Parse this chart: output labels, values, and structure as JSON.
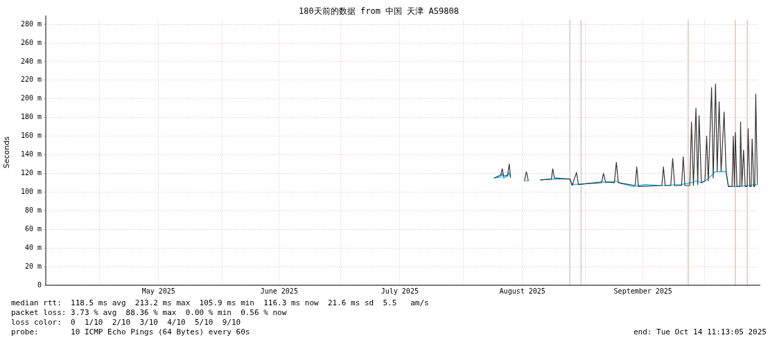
{
  "chart_data": {
    "type": "line",
    "title": "180天前的数据 from 中国 天津 AS9808",
    "ylabel": "Seconds",
    "xlim": [
      "2025-04-17T11:13",
      "2025-10-14T11:13"
    ],
    "xticks": [
      {
        "value": "2025-05-01",
        "label": null
      },
      {
        "value": "2025-05-16",
        "label": "May 2025"
      },
      {
        "value": "2025-06-01",
        "label": null
      },
      {
        "value": "2025-06-15T12:00",
        "label": "June 2025"
      },
      {
        "value": "2025-07-01",
        "label": null
      },
      {
        "value": "2025-07-16",
        "label": "July 2025"
      },
      {
        "value": "2025-08-01",
        "label": null
      },
      {
        "value": "2025-08-16",
        "label": "August 2025"
      },
      {
        "value": "2025-09-01",
        "label": null
      },
      {
        "value": "2025-09-15T12:00",
        "label": "September 2025"
      },
      {
        "value": "2025-10-01",
        "label": null
      }
    ],
    "ylim": [
      0,
      285
    ],
    "yticks": [
      {
        "value": 0,
        "label": "0"
      },
      {
        "value": 20,
        "label": "20 m"
      },
      {
        "value": 40,
        "label": "40 m"
      },
      {
        "value": 60,
        "label": "60 m"
      },
      {
        "value": 80,
        "label": "80 m"
      },
      {
        "value": 100,
        "label": "100 m"
      },
      {
        "value": 120,
        "label": "120 m"
      },
      {
        "value": 140,
        "label": "140 m"
      },
      {
        "value": 160,
        "label": "160 m"
      },
      {
        "value": 180,
        "label": "180 m"
      },
      {
        "value": 200,
        "label": "200 m"
      },
      {
        "value": 220,
        "label": "220 m"
      },
      {
        "value": 240,
        "label": "240 m"
      },
      {
        "value": 260,
        "label": "260 m"
      },
      {
        "value": 280,
        "label": "280 m"
      }
    ],
    "grid": true,
    "legend": false,
    "marker": "none",
    "line_style": "solid",
    "series": [
      {
        "color": "#333333",
        "x": [
          "2025-08-08T19:00",
          "2025-08-10T12:00",
          "2025-08-10T22:00",
          "2025-08-11T06:00",
          "2025-08-12T06:00",
          "2025-08-12T16:00",
          "2025-08-13T00:00",
          "2025-08-14T12:00",
          "2025-08-16T12:00",
          "2025-08-17T00:00",
          "2025-08-17T12:00",
          "2025-08-19T00:00",
          "2025-08-20T12:00",
          "2025-08-23T08:00",
          "2025-08-23T16:00",
          "2025-08-24T02:00",
          "2025-08-28T00:00",
          "2025-08-28T14:00",
          "2025-08-29T16:00",
          "2025-08-30T04:00",
          "2025-09-01T00:00",
          "2025-09-05T00:00",
          "2025-09-05T12:00",
          "2025-09-06T00:00",
          "2025-09-08T06:00",
          "2025-09-08T18:00",
          "2025-09-09T06:00",
          "2025-09-13T12:00",
          "2025-09-13T22:00",
          "2025-09-14T08:00",
          "2025-09-20T06:00",
          "2025-09-20T16:00",
          "2025-09-21T02:00",
          "2025-09-22T12:00",
          "2025-09-23T00:00",
          "2025-09-23T12:00",
          "2025-09-25T06:00",
          "2025-09-25T16:00",
          "2025-09-26T02:00",
          "2025-09-27T08:00",
          "2025-09-27T18:00",
          "2025-09-28T06:00",
          "2025-09-28T21:00",
          "2025-09-29T08:00",
          "2025-09-29T16:00",
          "2025-09-30T06:00",
          "2025-10-01T04:00",
          "2025-10-01T14:00",
          "2025-10-02T00:00",
          "2025-10-02T20:00",
          "2025-10-03T06:00",
          "2025-10-03T20:00",
          "2025-10-04T06:00",
          "2025-10-04T18:00",
          "2025-10-05T06:00",
          "2025-10-06T00:00",
          "2025-10-06T12:00",
          "2025-10-07T02:00",
          "2025-10-08T00:00",
          "2025-10-08T08:00",
          "2025-10-08T14:00",
          "2025-10-08T20:00",
          "2025-10-09T06:00",
          "2025-10-10T00:00",
          "2025-10-10T04:00",
          "2025-10-10T12:00",
          "2025-10-10T22:00",
          "2025-10-11T08:00",
          "2025-10-11T20:00",
          "2025-10-12T02:00",
          "2025-10-12T12:00",
          "2025-10-12T20:00",
          "2025-10-13T02:00",
          "2025-10-13T12:00",
          "2025-10-13T18:00",
          "2025-10-14T00:00",
          "2025-10-14T10:00"
        ],
        "values": [
          115,
          118,
          125,
          117,
          118,
          130,
          116,
          null,
          112,
          122,
          112,
          null,
          113,
          114,
          125,
          115,
          114,
          107,
          121,
          108,
          109,
          110,
          120,
          111,
          110,
          132,
          110,
          107,
          127,
          106,
          107,
          127,
          107,
          107,
          136,
          107,
          107,
          138,
          107,
          107,
          175,
          107,
          190,
          108,
          182,
          110,
          112,
          160,
          112,
          212,
          115,
          216,
          122,
          197,
          122,
          186,
          122,
          106,
          106,
          160,
          106,
          164,
          106,
          106,
          175,
          106,
          145,
          106,
          106,
          168,
          106,
          106,
          157,
          106,
          106,
          205,
          108
        ]
      },
      {
        "color": "#00b4ff",
        "x": [
          "2025-08-08T19:00",
          "2025-08-10T12:00",
          "2025-08-10T22:00",
          "2025-08-11T06:00",
          "2025-08-12T06:00",
          "2025-08-12T16:00",
          "2025-08-13T00:00",
          "2025-08-14T12:00",
          "2025-08-16T12:00",
          "2025-08-17T12:00",
          "2025-08-19T00:00",
          "2025-08-20T12:00",
          "2025-08-24T02:00",
          "2025-08-28T00:00",
          "2025-08-28T14:00",
          "2025-09-01T00:00",
          "2025-09-05T00:00",
          "2025-09-06T00:00",
          "2025-09-08T18:00",
          "2025-09-10T00:00",
          "2025-09-13T00:00",
          "2025-09-16T00:00",
          "2025-09-20T12:00",
          "2025-09-25T00:00",
          "2025-09-27T18:00",
          "2025-09-28T21:00",
          "2025-09-30T06:00",
          "2025-10-01T14:00",
          "2025-10-02T20:00",
          "2025-10-03T20:00",
          "2025-10-06T12:00",
          "2025-10-07T02:00",
          "2025-10-09T06:00",
          "2025-10-12T00:00",
          "2025-10-14T10:00"
        ],
        "values": [
          115,
          116,
          120,
          115,
          117,
          121,
          115,
          null,
          112,
          112,
          null,
          113,
          114,
          114,
          108,
          109,
          111,
          110,
          112,
          109,
          106,
          108,
          107,
          108,
          110,
          112,
          110,
          113,
          118,
          122,
          122,
          106,
          106,
          107,
          108
        ]
      }
    ],
    "ref_lines": [
      {
        "axis": "x",
        "value": "2025-08-28T00:00",
        "color": "#cccccc"
      },
      {
        "axis": "x",
        "value": "2025-08-30T20:00",
        "color": "#cccccc"
      },
      {
        "axis": "x",
        "value": "2025-09-26T22:00",
        "color": "#e8c0c0"
      },
      {
        "axis": "x",
        "value": "2025-10-08T20:00",
        "color": "#e8c0c0"
      },
      {
        "axis": "x",
        "value": "2025-10-11T20:00",
        "color": "#e8c0c0"
      }
    ],
    "annotations": [
      "median rtt:  118.5 ms avg  213.2 ms max  105.9 ms min  116.3 ms now  21.6 ms sd  5.5   am/s",
      "packet loss: 3.73 % avg  88.36 % max  0.00 % min  0.56 % now",
      "loss color:  0  1/10  2/10  3/10  4/10  5/10  9/10",
      "probe:       10 ICMP Echo Pings (64 Bytes) every 60s",
      "end: Tue Oct 14 11:13:05 2025"
    ]
  }
}
